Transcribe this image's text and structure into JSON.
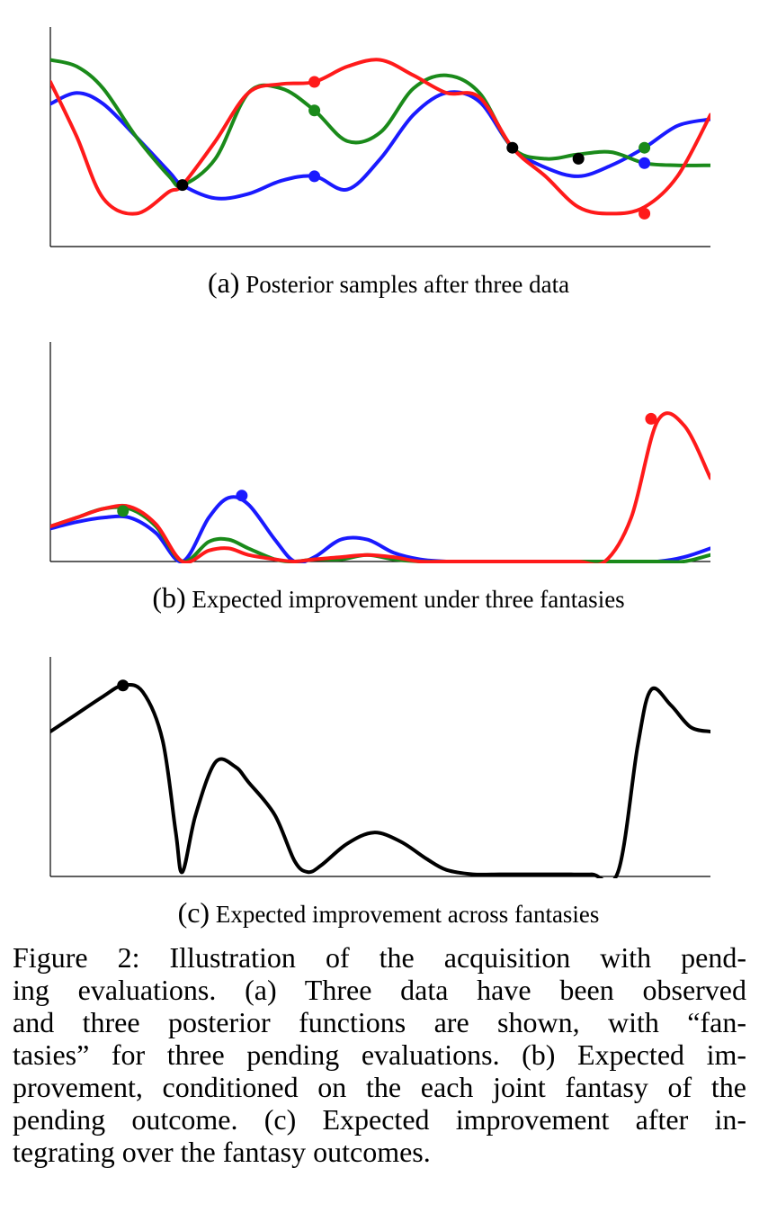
{
  "chart_data": [
    {
      "type": "line",
      "label": "(a)",
      "title": "Posterior samples after three data",
      "series": [
        {
          "color": "#1a1aff",
          "x": [
            0,
            0.04,
            0.08,
            0.13,
            0.18,
            0.2,
            0.25,
            0.3,
            0.35,
            0.4,
            0.45,
            0.5,
            0.55,
            0.6,
            0.65,
            0.7,
            0.75,
            0.8,
            0.85,
            0.9,
            0.95,
            1
          ],
          "y": [
            0.65,
            0.7,
            0.65,
            0.5,
            0.34,
            0.28,
            0.22,
            0.24,
            0.3,
            0.32,
            0.26,
            0.4,
            0.6,
            0.7,
            0.66,
            0.45,
            0.36,
            0.32,
            0.37,
            0.45,
            0.55,
            0.58
          ],
          "fantasy": {
            "x": 0.4,
            "y": 0.32
          }
        },
        {
          "color": "#1a8a1a",
          "x": [
            0,
            0.04,
            0.08,
            0.13,
            0.18,
            0.2,
            0.25,
            0.3,
            0.35,
            0.4,
            0.45,
            0.5,
            0.55,
            0.6,
            0.65,
            0.7,
            0.75,
            0.8,
            0.85,
            0.9,
            0.95,
            1
          ],
          "y": [
            0.85,
            0.82,
            0.72,
            0.5,
            0.32,
            0.28,
            0.4,
            0.7,
            0.72,
            0.62,
            0.48,
            0.52,
            0.72,
            0.78,
            0.7,
            0.45,
            0.4,
            0.42,
            0.43,
            0.38,
            0.37,
            0.37
          ],
          "fantasy": {
            "x": 0.4,
            "y": 0.62
          }
        },
        {
          "color": "#ff1a1a",
          "x": [
            0,
            0.04,
            0.08,
            0.13,
            0.18,
            0.2,
            0.25,
            0.3,
            0.35,
            0.4,
            0.45,
            0.5,
            0.55,
            0.6,
            0.65,
            0.7,
            0.75,
            0.8,
            0.85,
            0.9,
            0.95,
            1
          ],
          "y": [
            0.75,
            0.5,
            0.22,
            0.15,
            0.25,
            0.28,
            0.48,
            0.7,
            0.74,
            0.75,
            0.82,
            0.85,
            0.78,
            0.7,
            0.68,
            0.45,
            0.32,
            0.18,
            0.15,
            0.18,
            0.32,
            0.6
          ],
          "fantasy": {
            "x": 0.4,
            "y": 0.75
          }
        }
      ],
      "observed": [
        {
          "x": 0.2,
          "y": 0.28
        },
        {
          "x": 0.7,
          "y": 0.45
        },
        {
          "x": 0.8,
          "y": 0.4
        }
      ],
      "fantasies_right": [
        {
          "color": "#1a8a1a",
          "x": 0.9,
          "y": 0.45
        },
        {
          "color": "#1a1aff",
          "x": 0.9,
          "y": 0.38
        },
        {
          "color": "#ff1a1a",
          "x": 0.9,
          "y": 0.15
        }
      ],
      "ylim": [
        0,
        1
      ],
      "xlim": [
        0,
        1
      ]
    },
    {
      "type": "line",
      "label": "(b)",
      "title": "Expected improvement under three fantasies",
      "series": [
        {
          "color": "#1a1aff",
          "x": [
            0,
            0.04,
            0.08,
            0.12,
            0.16,
            0.2,
            0.24,
            0.27,
            0.3,
            0.34,
            0.37,
            0.4,
            0.44,
            0.48,
            0.52,
            0.56,
            0.6,
            0.64,
            0.68,
            0.72,
            0.76,
            0.8,
            0.84,
            0.88,
            0.92,
            0.96,
            1
          ],
          "y": [
            0.15,
            0.18,
            0.2,
            0.2,
            0.13,
            0,
            0.2,
            0.29,
            0.26,
            0.1,
            0,
            0.02,
            0.1,
            0.1,
            0.04,
            0.01,
            0,
            0,
            0,
            0,
            0,
            0,
            0,
            0,
            0,
            0.02,
            0.06
          ],
          "fantasy": {
            "x": 0.29,
            "y": 0.3
          }
        },
        {
          "color": "#1a8a1a",
          "x": [
            0,
            0.04,
            0.08,
            0.12,
            0.16,
            0.2,
            0.24,
            0.27,
            0.3,
            0.34,
            0.37,
            0.4,
            0.44,
            0.48,
            0.52,
            0.56,
            0.6,
            0.64,
            0.68,
            0.72,
            0.76,
            0.8,
            0.84,
            0.88,
            0.92,
            0.96,
            1
          ],
          "y": [
            0.16,
            0.2,
            0.24,
            0.24,
            0.16,
            0,
            0.09,
            0.1,
            0.06,
            0.01,
            0,
            0.01,
            0.01,
            0.03,
            0.01,
            0,
            0,
            0,
            0,
            0,
            0,
            0,
            0,
            0,
            0,
            0,
            0.03
          ],
          "fantasy": {
            "x": 0.11,
            "y": 0.23
          }
        },
        {
          "color": "#ff1a1a",
          "x": [
            0,
            0.04,
            0.08,
            0.12,
            0.16,
            0.2,
            0.24,
            0.27,
            0.3,
            0.34,
            0.37,
            0.4,
            0.44,
            0.48,
            0.52,
            0.56,
            0.6,
            0.64,
            0.68,
            0.72,
            0.76,
            0.8,
            0.84,
            0.88,
            0.92,
            0.96,
            1
          ],
          "y": [
            0.16,
            0.2,
            0.24,
            0.25,
            0.17,
            0,
            0.05,
            0.06,
            0.03,
            0.01,
            0,
            0.01,
            0.02,
            0.03,
            0.02,
            0,
            0,
            0,
            0,
            0,
            0,
            0,
            0,
            0.2,
            0.64,
            0.62,
            0.38
          ],
          "fantasy": {
            "x": 0.91,
            "y": 0.65
          }
        }
      ],
      "ylim": [
        0,
        1
      ],
      "xlim": [
        0,
        1
      ]
    },
    {
      "type": "line",
      "label": "(c)",
      "title": "Expected improvement across fantasies",
      "series": [
        {
          "color": "#000000",
          "x": [
            0,
            0.04,
            0.08,
            0.11,
            0.14,
            0.17,
            0.19,
            0.2,
            0.22,
            0.25,
            0.28,
            0.3,
            0.34,
            0.37,
            0.39,
            0.41,
            0.45,
            0.49,
            0.53,
            0.57,
            0.6,
            0.64,
            0.68,
            0.71,
            0.74,
            0.78,
            0.82,
            0.86,
            0.89,
            0.91,
            0.94,
            0.97,
            1
          ],
          "y": [
            0.66,
            0.74,
            0.82,
            0.87,
            0.84,
            0.62,
            0.2,
            0.02,
            0.28,
            0.52,
            0.5,
            0.43,
            0.28,
            0.07,
            0.02,
            0.05,
            0.15,
            0.2,
            0.16,
            0.08,
            0.03,
            0.01,
            0.01,
            0.01,
            0.01,
            0.01,
            0.01,
            0.02,
            0.6,
            0.85,
            0.78,
            0.68,
            0.66
          ],
          "fantasy": {
            "x": 0.11,
            "y": 0.87
          }
        }
      ],
      "ylim": [
        0,
        1
      ],
      "xlim": [
        0,
        1
      ]
    }
  ],
  "figure": {
    "lines": [
      "Figure 2:  Illustration of the acquisition with pend-",
      "ing evaluations.  (a) Three data have been observed",
      "and three posterior functions are shown, with “fan-",
      "tasies” for three pending evaluations. (b) Expected im-",
      "provement, conditioned on the each joint fantasy of the",
      "pending outcome. (c) Expected improvement after in-",
      "tegrating over the fantasy outcomes."
    ]
  }
}
